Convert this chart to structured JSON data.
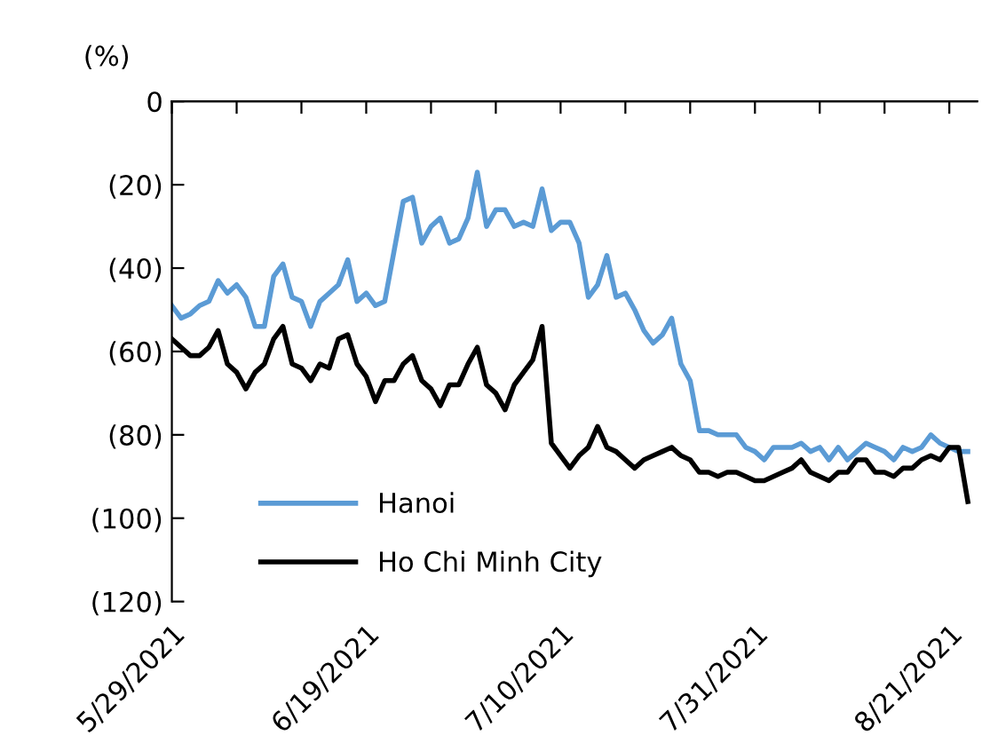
{
  "chart_data": {
    "type": "line",
    "ylabel": "(%)",
    "x": [
      "2021-05-29",
      "2021-05-30",
      "2021-05-31",
      "2021-06-01",
      "2021-06-02",
      "2021-06-03",
      "2021-06-04",
      "2021-06-05",
      "2021-06-06",
      "2021-06-07",
      "2021-06-08",
      "2021-06-09",
      "2021-06-10",
      "2021-06-11",
      "2021-06-12",
      "2021-06-13",
      "2021-06-14",
      "2021-06-15",
      "2021-06-16",
      "2021-06-17",
      "2021-06-18",
      "2021-06-19",
      "2021-06-20",
      "2021-06-21",
      "2021-06-22",
      "2021-06-23",
      "2021-06-24",
      "2021-06-25",
      "2021-06-26",
      "2021-06-27",
      "2021-06-28",
      "2021-06-29",
      "2021-06-30",
      "2021-07-01",
      "2021-07-02",
      "2021-07-03",
      "2021-07-04",
      "2021-07-05",
      "2021-07-06",
      "2021-07-07",
      "2021-07-08",
      "2021-07-09",
      "2021-07-10",
      "2021-07-11",
      "2021-07-12",
      "2021-07-13",
      "2021-07-14",
      "2021-07-15",
      "2021-07-16",
      "2021-07-17",
      "2021-07-18",
      "2021-07-19",
      "2021-07-20",
      "2021-07-21",
      "2021-07-22",
      "2021-07-23",
      "2021-07-24",
      "2021-07-25",
      "2021-07-26",
      "2021-07-27",
      "2021-07-28",
      "2021-07-29",
      "2021-07-30",
      "2021-07-31",
      "2021-08-01",
      "2021-08-02",
      "2021-08-03",
      "2021-08-04",
      "2021-08-05",
      "2021-08-06",
      "2021-08-07",
      "2021-08-08",
      "2021-08-09",
      "2021-08-10",
      "2021-08-11",
      "2021-08-12",
      "2021-08-13",
      "2021-08-14",
      "2021-08-15",
      "2021-08-16",
      "2021-08-17",
      "2021-08-18",
      "2021-08-19",
      "2021-08-20",
      "2021-08-21",
      "2021-08-22",
      "2021-08-23"
    ],
    "series": [
      {
        "name": "Hanoi",
        "color": "#5b9bd5",
        "values": [
          -49,
          -52,
          -51,
          -49,
          -48,
          -43,
          -46,
          -44,
          -47,
          -54,
          -54,
          -42,
          -39,
          -47,
          -48,
          -54,
          -48,
          -46,
          -44,
          -38,
          -48,
          -46,
          -49,
          -48,
          -36,
          -24,
          -23,
          -34,
          -30,
          -28,
          -34,
          -33,
          -28,
          -17,
          -30,
          -26,
          -26,
          -30,
          -29,
          -30,
          -21,
          -31,
          -29,
          -29,
          -34,
          -47,
          -44,
          -37,
          -47,
          -46,
          -50,
          -55,
          -58,
          -56,
          -52,
          -63,
          -67,
          -79,
          -79,
          -80,
          -80,
          -80,
          -83,
          -84,
          -86,
          -83,
          -83,
          -83,
          -82,
          -84,
          -83,
          -86,
          -83,
          -86,
          -84,
          -82,
          -83,
          -84,
          -86,
          -83,
          -84,
          -83,
          -80,
          -82,
          -83,
          -84,
          -84
        ]
      },
      {
        "name": "Ho Chi Minh City",
        "color": "#000000",
        "values": [
          -57,
          -59,
          -61,
          -61,
          -59,
          -55,
          -63,
          -65,
          -69,
          -65,
          -63,
          -57,
          -54,
          -63,
          -64,
          -67,
          -63,
          -64,
          -57,
          -56,
          -63,
          -66,
          -72,
          -67,
          -67,
          -63,
          -61,
          -67,
          -69,
          -73,
          -68,
          -68,
          -63,
          -59,
          -68,
          -70,
          -74,
          -68,
          -65,
          -62,
          -54,
          -82,
          -85,
          -88,
          -85,
          -83,
          -78,
          -83,
          -84,
          -86,
          -88,
          -86,
          -85,
          -84,
          -83,
          -85,
          -86,
          -89,
          -89,
          -90,
          -89,
          -89,
          -90,
          -91,
          -91,
          -90,
          -89,
          -88,
          -86,
          -89,
          -90,
          -91,
          -89,
          -89,
          -86,
          -86,
          -89,
          -89,
          -90,
          -88,
          -88,
          -86,
          -85,
          -86,
          -83,
          -83,
          -96
        ]
      }
    ],
    "xlim": [
      "2021-05-29",
      "2021-08-24"
    ],
    "xticks": [
      {
        "value": "2021-05-29",
        "label": "5/29/2021"
      },
      {
        "value": "2021-06-05",
        "label": null
      },
      {
        "value": "2021-06-12",
        "label": null
      },
      {
        "value": "2021-06-19",
        "label": "6/19/2021"
      },
      {
        "value": "2021-06-26",
        "label": null
      },
      {
        "value": "2021-07-03",
        "label": null
      },
      {
        "value": "2021-07-10",
        "label": "7/10/2021"
      },
      {
        "value": "2021-07-17",
        "label": null
      },
      {
        "value": "2021-07-24",
        "label": null
      },
      {
        "value": "2021-07-31",
        "label": "7/31/2021"
      },
      {
        "value": "2021-08-07",
        "label": null
      },
      {
        "value": "2021-08-14",
        "label": null
      },
      {
        "value": "2021-08-21",
        "label": "8/21/2021"
      }
    ],
    "ylim": [
      -120,
      0
    ],
    "yticks": [
      {
        "value": 0,
        "label": "0"
      },
      {
        "value": -20,
        "label": "(20)"
      },
      {
        "value": -40,
        "label": "(40)"
      },
      {
        "value": -60,
        "label": "(60)"
      },
      {
        "value": -80,
        "label": "(80)"
      },
      {
        "value": -100,
        "label": "(100)"
      },
      {
        "value": -120,
        "label": "(120)"
      }
    ],
    "grid": false,
    "legend": "bottom left",
    "marker": "none",
    "line_style": "solid"
  }
}
